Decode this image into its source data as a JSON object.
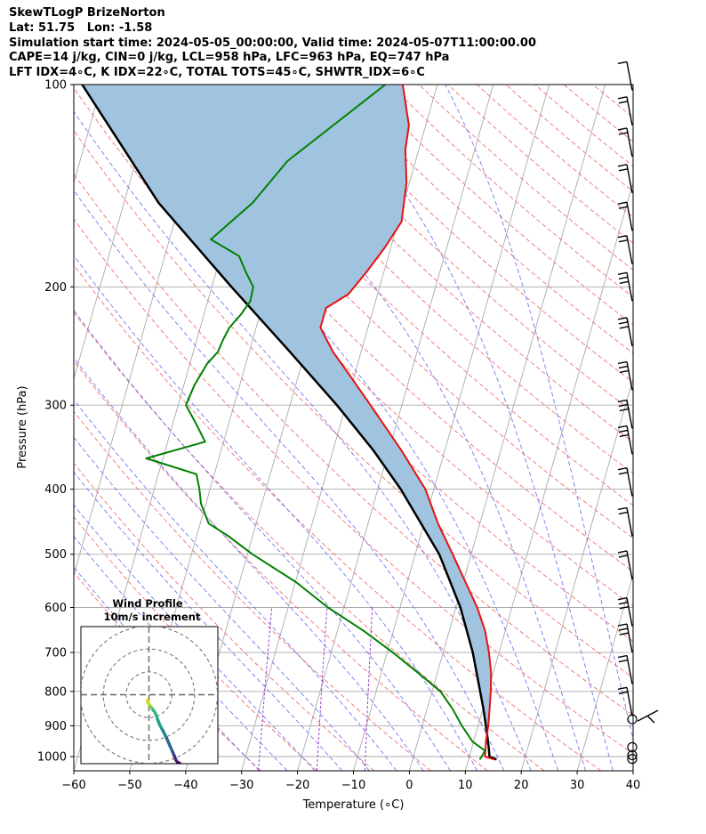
{
  "header": {
    "line1": "SkewTLogP BrizeNorton",
    "line2": "Lat: 51.75   Lon: -1.58",
    "line3": "Simulation start time: 2024-05-05_00:00:00, Valid time: 2024-05-07T11:00:00.00",
    "line4": "CAPE=14 j/kg, CIN=0 j/kg, LCL=958 hPa, LFC=963 hPa, EQ=747 hPa",
    "line5": "LFT IDX=4∘C, K IDX=22∘C, TOTAL TOTS=45∘C, SHWTR_IDX=6∘C"
  },
  "chart_data": [
    {
      "type": "line",
      "subtype": "skewT-logP",
      "xlabel": "Temperature (∘C)",
      "ylabel": "Pressure (hPa)",
      "xlim": [
        -60,
        40
      ],
      "ylim": [
        1050,
        100
      ],
      "y_scale": "log",
      "x_ticks": [
        "−60",
        "−50",
        "−40",
        "−30",
        "−20",
        "−10",
        "0",
        "10",
        "20",
        "30",
        "40"
      ],
      "y_ticks": [
        "100",
        "200",
        "300",
        "400",
        "500",
        "600",
        "700",
        "800",
        "900",
        "1000"
      ],
      "grid": true,
      "colors": {
        "temperature": "#e81010",
        "dewpoint": "#008000",
        "parcel": "#000000",
        "cape_fill": "#a0c4e0",
        "dry_adiabat": "#f07070",
        "moist_adiabat": "#6f6ff0",
        "mixing_ratio": "#a040d0",
        "isotherm": "#aaaaaa"
      },
      "series": [
        {
          "key": "temperature",
          "pressure": [
            1010,
            1000,
            950,
            900,
            850,
            800,
            750,
            700,
            650,
            600,
            550,
            500,
            450,
            400,
            350,
            300,
            270,
            250,
            230,
            215,
            205,
            190,
            175,
            160,
            140,
            125,
            115,
            100
          ],
          "values": [
            14.6,
            12.8,
            12.2,
            11.8,
            11.2,
            10.5,
            9.6,
            8.2,
            6.4,
            3.8,
            0.4,
            -3.3,
            -7.5,
            -11.5,
            -17.8,
            -25.6,
            -31.0,
            -35.0,
            -38.5,
            -38.5,
            -35.2,
            -33.1,
            -31.1,
            -29.4,
            -30.5,
            -32.4,
            -33.0,
            -36.2
          ]
        },
        {
          "key": "dewpoint",
          "pressure": [
            1010,
            1000,
            980,
            950,
            900,
            850,
            800,
            750,
            700,
            650,
            600,
            550,
            500,
            470,
            450,
            420,
            400,
            380,
            360,
            340,
            320,
            300,
            280,
            260,
            250,
            240,
            230,
            220,
            210,
            200,
            190,
            180,
            170,
            150,
            130,
            100
          ],
          "values": [
            12.0,
            12.2,
            12.5,
            9.8,
            7.1,
            4.6,
            1.5,
            -3.5,
            -9.0,
            -15.3,
            -22.9,
            -29.9,
            -39.1,
            -44.3,
            -48.5,
            -50.9,
            -51.9,
            -53.2,
            -63.0,
            -53.3,
            -55.8,
            -58.6,
            -58.1,
            -56.9,
            -55.6,
            -55.3,
            -54.8,
            -53.4,
            -52.4,
            -52.6,
            -54.7,
            -56.7,
            -62.6,
            -57.0,
            -52.9,
            -39.3
          ]
        },
        {
          "key": "parcel",
          "pressure": [
            1010,
            1000,
            960,
            900,
            850,
            800,
            700,
            600,
            500,
            400,
            350,
            300,
            250,
            200,
            150,
            100
          ],
          "values": [
            15.0,
            13.6,
            12.8,
            11.4,
            10.1,
            8.6,
            5.3,
            0.8,
            -5.7,
            -15.9,
            -22.8,
            -31.6,
            -42.7,
            -56.5,
            -73.8,
            -93.5
          ]
        }
      ],
      "wind_barbs": [
        {
          "p": 1008,
          "calm": true
        },
        {
          "p": 995,
          "calm": true
        },
        {
          "p": 968,
          "calm": true
        },
        {
          "p": 880,
          "calm": true
        },
        {
          "p": 870,
          "flags": [
            10,
            10
          ]
        },
        {
          "p": 780,
          "flags": [
            10,
            10
          ]
        },
        {
          "p": 700,
          "flags": [
            10,
            10,
            10
          ]
        },
        {
          "p": 640,
          "flags": [
            10,
            10,
            10
          ]
        },
        {
          "p": 545,
          "flags": [
            10,
            10
          ]
        },
        {
          "p": 470,
          "flags": [
            10,
            10
          ]
        },
        {
          "p": 410,
          "flags": [
            10,
            10
          ]
        },
        {
          "p": 355,
          "flags": [
            10,
            10,
            10
          ]
        },
        {
          "p": 325,
          "flags": [
            10,
            10,
            10
          ]
        },
        {
          "p": 285,
          "flags": [
            10,
            10,
            10
          ]
        },
        {
          "p": 245,
          "flags": [
            10,
            10,
            10
          ]
        },
        {
          "p": 210,
          "flags": [
            10,
            10,
            10
          ]
        },
        {
          "p": 185,
          "flags": [
            10,
            10
          ]
        },
        {
          "p": 165,
          "flags": [
            10,
            10
          ]
        },
        {
          "p": 145,
          "flags": [
            10,
            10
          ]
        },
        {
          "p": 128,
          "flags": [
            10,
            10
          ]
        },
        {
          "p": 115,
          "flags": [
            10,
            10
          ]
        },
        {
          "p": 102,
          "flags": [
            10
          ]
        }
      ]
    },
    {
      "type": "scatter",
      "subtype": "hodograph",
      "title": "Wind Profile",
      "subtitle": "10m/s increment",
      "rings": [
        10,
        20,
        30
      ],
      "xlim": [
        -30,
        30
      ],
      "ylim": [
        -30,
        30
      ],
      "u": [
        -0.8,
        -0.5,
        0.2,
        1.0,
        1.8,
        2.8,
        3.8,
        4.8,
        6.0,
        7.8,
        9.2,
        10.4,
        11.2,
        11.8,
        12.6,
        13.2,
        13.5
      ],
      "v": [
        -2.2,
        -3.4,
        -4.3,
        -5.5,
        -6.6,
        -8.0,
        -10.8,
        -13.3,
        -15.5,
        -19.1,
        -22.4,
        -25.1,
        -27.0,
        -28.6,
        -29.7,
        -30.0,
        -30.0
      ],
      "colormap": "viridis"
    }
  ]
}
